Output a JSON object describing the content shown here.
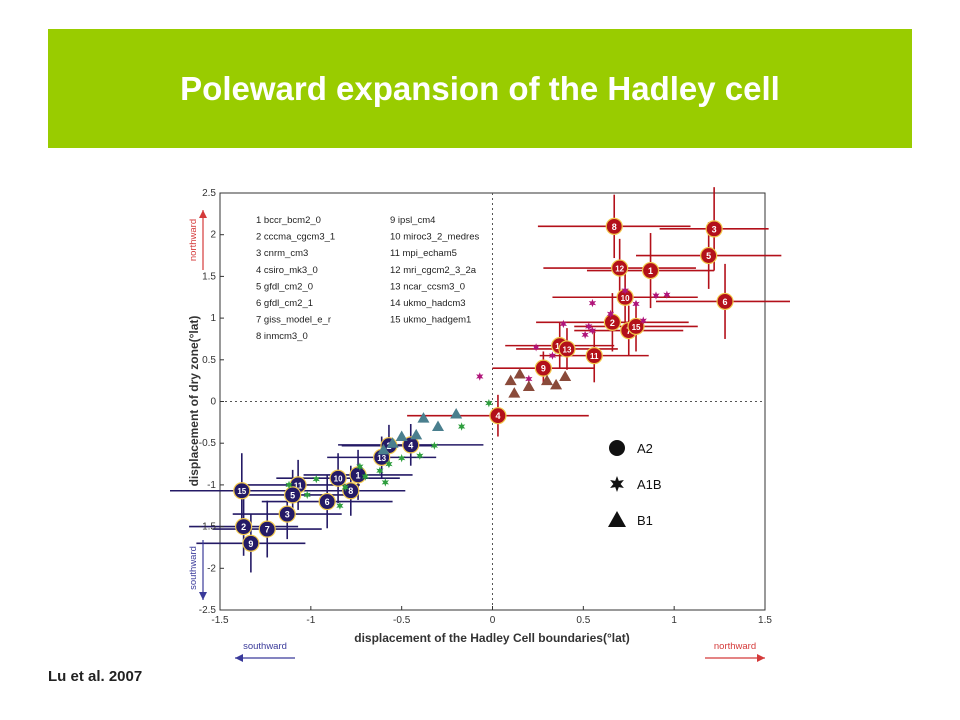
{
  "slide": {
    "title": "Poleward expansion of the Hadley cell",
    "citation": "Lu et al. 2007"
  },
  "colors": {
    "banner": "#99cc00",
    "a2_south": "#241a66",
    "a2_north": "#b3101a",
    "a1b_south": "#2e9e3e",
    "a1b_north": "#b0157a",
    "b1_south": "#4a7f8e",
    "b1_north": "#8a4a3a"
  },
  "chart_data": {
    "type": "scatter",
    "xlabel": "displacement of the Hadley Cell boundaries(°lat)",
    "ylabel": "displacement of dry zone(°lat)",
    "xlim": [
      -1.5,
      1.5
    ],
    "ylim": [
      -2.5,
      2.5
    ],
    "x_ticks": [
      "-1.5",
      "-1",
      "-0.5",
      "0",
      "0.5",
      "1",
      "1.5"
    ],
    "y_ticks": [
      "-2.5",
      "-2",
      "-1.5",
      "-1",
      "-0.5",
      "0",
      "0.5",
      "1",
      "1.5",
      "2",
      "2.5"
    ],
    "x_tick_values": [
      -1.5,
      -1,
      -0.5,
      0,
      0.5,
      1,
      1.5
    ],
    "y_tick_values": [
      -2.5,
      -2,
      -1.5,
      -1,
      -0.5,
      0,
      0.5,
      1,
      1.5,
      2,
      2.5
    ],
    "arrows": {
      "north_x": "northward",
      "south_x": "southward",
      "north_y": "northward",
      "south_y": "southward"
    },
    "models": [
      "1 bccr_bcm2_0",
      "2 cccma_cgcm3_1",
      "3 cnrm_cm3",
      "4 csiro_mk3_0",
      "5 gfdl_cm2_0",
      "6 gfdl_cm2_1",
      "7 giss_model_e_r",
      "8 inmcm3_0",
      "9 ipsl_cm4",
      "10 miroc3_2_medres",
      "11 mpi_echam5",
      "12 mri_cgcm2_3_2a",
      "13 ncar_ccsm3_0",
      "14 ukmo_hadcm3",
      "15 ukmo_hadgem1"
    ],
    "legend": [
      "A2",
      "A1B",
      "B1"
    ],
    "series": [
      {
        "name": "A2",
        "marker": "circle",
        "points": [
          {
            "x": 0.03,
            "y": -0.17,
            "id": "4",
            "hemi": "N",
            "xerr": 0.5,
            "yerr": 0.25
          },
          {
            "x": 0.28,
            "y": 0.4,
            "id": "9",
            "hemi": "N",
            "xerr": 0.28,
            "yerr": 0.2
          },
          {
            "x": 0.37,
            "y": 0.67,
            "id": "14",
            "hemi": "N",
            "xerr": 0.3,
            "yerr": 0.28
          },
          {
            "x": 0.41,
            "y": 0.63,
            "id": "13",
            "hemi": "N",
            "xerr": 0.28,
            "yerr": 0.25
          },
          {
            "x": 0.56,
            "y": 0.55,
            "id": "11",
            "hemi": "N",
            "xerr": 0.3,
            "yerr": 0.32
          },
          {
            "x": 0.66,
            "y": 0.95,
            "id": "2",
            "hemi": "N",
            "xerr": 0.42,
            "yerr": 0.35
          },
          {
            "x": 0.75,
            "y": 0.85,
            "id": "7",
            "hemi": "N",
            "xerr": 0.3,
            "yerr": 0.3
          },
          {
            "x": 0.79,
            "y": 0.9,
            "id": "15",
            "hemi": "N",
            "xerr": 0.34,
            "yerr": 0.3
          },
          {
            "x": 0.73,
            "y": 1.25,
            "id": "10",
            "hemi": "N",
            "xerr": 0.4,
            "yerr": 0.38
          },
          {
            "x": 0.67,
            "y": 2.1,
            "id": "8",
            "hemi": "N",
            "xerr": 0.42,
            "yerr": 0.38
          },
          {
            "x": 0.7,
            "y": 1.6,
            "id": "12",
            "hemi": "N",
            "xerr": 0.42,
            "yerr": 0.35
          },
          {
            "x": 0.87,
            "y": 1.57,
            "id": "1",
            "hemi": "N",
            "xerr": 0.35,
            "yerr": 0.45
          },
          {
            "x": 1.19,
            "y": 1.75,
            "id": "5",
            "hemi": "N",
            "xerr": 0.4,
            "yerr": 0.4
          },
          {
            "x": 1.22,
            "y": 2.07,
            "id": "3",
            "hemi": "N",
            "xerr": 0.3,
            "yerr": 0.5
          },
          {
            "x": 1.28,
            "y": 1.2,
            "id": "6",
            "hemi": "N",
            "xerr": 0.38,
            "yerr": 0.45
          },
          {
            "x": -0.45,
            "y": -0.52,
            "id": "4",
            "hemi": "S",
            "xerr": 0.4,
            "yerr": 0.25
          },
          {
            "x": -0.57,
            "y": -0.53,
            "id": "2",
            "hemi": "S",
            "xerr": 0.26,
            "yerr": 0.25
          },
          {
            "x": -0.61,
            "y": -0.67,
            "id": "13",
            "hemi": "S",
            "xerr": 0.3,
            "yerr": 0.25
          },
          {
            "x": -0.74,
            "y": -0.88,
            "id": "1",
            "hemi": "S",
            "xerr": 0.3,
            "yerr": 0.3
          },
          {
            "x": -0.85,
            "y": -0.92,
            "id": "10",
            "hemi": "S",
            "xerr": 0.34,
            "yerr": 0.3
          },
          {
            "x": -0.78,
            "y": -1.07,
            "id": "8",
            "hemi": "S",
            "xerr": 0.3,
            "yerr": 0.3
          },
          {
            "x": -0.91,
            "y": -1.2,
            "id": "6",
            "hemi": "S",
            "xerr": 0.36,
            "yerr": 0.32
          },
          {
            "x": -1.07,
            "y": -1.0,
            "id": "11",
            "hemi": "S",
            "xerr": 0.34,
            "yerr": 0.3
          },
          {
            "x": -1.1,
            "y": -1.12,
            "id": "5",
            "hemi": "S",
            "xerr": 0.32,
            "yerr": 0.3
          },
          {
            "x": -1.13,
            "y": -1.35,
            "id": "3",
            "hemi": "S",
            "xerr": 0.3,
            "yerr": 0.3
          },
          {
            "x": -1.24,
            "y": -1.53,
            "id": "7",
            "hemi": "S",
            "xerr": 0.3,
            "yerr": 0.34
          },
          {
            "x": -1.38,
            "y": -1.07,
            "id": "15",
            "hemi": "S",
            "xerr": 0.4,
            "yerr": 0.45
          },
          {
            "x": -1.37,
            "y": -1.5,
            "id": "2",
            "hemi": "S",
            "xerr": 0.3,
            "yerr": 0.35
          },
          {
            "x": -1.33,
            "y": -1.7,
            "id": "9",
            "hemi": "S",
            "xerr": 0.3,
            "yerr": 0.35
          }
        ]
      },
      {
        "name": "A1B",
        "marker": "star",
        "points": [
          {
            "x": -0.07,
            "y": 0.3,
            "hemi": "N"
          },
          {
            "x": 0.2,
            "y": 0.27,
            "hemi": "N"
          },
          {
            "x": 0.33,
            "y": 0.55,
            "hemi": "N"
          },
          {
            "x": 0.24,
            "y": 0.65,
            "hemi": "N"
          },
          {
            "x": 0.39,
            "y": 0.93,
            "hemi": "N"
          },
          {
            "x": 0.51,
            "y": 0.8,
            "hemi": "N"
          },
          {
            "x": 0.53,
            "y": 0.9,
            "hemi": "N"
          },
          {
            "x": 0.55,
            "y": 0.85,
            "hemi": "N"
          },
          {
            "x": 0.55,
            "y": 1.18,
            "hemi": "N"
          },
          {
            "x": 0.65,
            "y": 1.05,
            "hemi": "N"
          },
          {
            "x": 0.73,
            "y": 1.33,
            "hemi": "N"
          },
          {
            "x": 0.79,
            "y": 1.17,
            "hemi": "N"
          },
          {
            "x": 0.83,
            "y": 0.97,
            "hemi": "N"
          },
          {
            "x": 0.9,
            "y": 1.27,
            "hemi": "N"
          },
          {
            "x": 0.96,
            "y": 1.28,
            "hemi": "N"
          },
          {
            "x": -0.02,
            "y": -0.02,
            "hemi": "S"
          },
          {
            "x": -0.17,
            "y": -0.3,
            "hemi": "S"
          },
          {
            "x": -0.32,
            "y": -0.53,
            "hemi": "S"
          },
          {
            "x": -0.4,
            "y": -0.65,
            "hemi": "S"
          },
          {
            "x": -0.5,
            "y": -0.68,
            "hemi": "S"
          },
          {
            "x": -0.57,
            "y": -0.75,
            "hemi": "S"
          },
          {
            "x": -0.59,
            "y": -0.97,
            "hemi": "S"
          },
          {
            "x": -0.62,
            "y": -0.83,
            "hemi": "S"
          },
          {
            "x": -0.7,
            "y": -0.9,
            "hemi": "S"
          },
          {
            "x": -0.73,
            "y": -0.78,
            "hemi": "S"
          },
          {
            "x": -0.81,
            "y": -1.03,
            "hemi": "S"
          },
          {
            "x": -0.84,
            "y": -1.25,
            "hemi": "S"
          },
          {
            "x": -0.97,
            "y": -0.93,
            "hemi": "S"
          },
          {
            "x": -1.02,
            "y": -1.12,
            "hemi": "S"
          },
          {
            "x": -1.12,
            "y": -1.0,
            "hemi": "S"
          }
        ]
      },
      {
        "name": "B1",
        "marker": "triangle",
        "points": [
          {
            "x": 0.1,
            "y": 0.25,
            "hemi": "N"
          },
          {
            "x": 0.15,
            "y": 0.33,
            "hemi": "N"
          },
          {
            "x": 0.2,
            "y": 0.18,
            "hemi": "N"
          },
          {
            "x": 0.3,
            "y": 0.25,
            "hemi": "N"
          },
          {
            "x": 0.35,
            "y": 0.2,
            "hemi": "N"
          },
          {
            "x": 0.4,
            "y": 0.3,
            "hemi": "N"
          },
          {
            "x": 0.12,
            "y": 0.1,
            "hemi": "N"
          },
          {
            "x": -0.2,
            "y": -0.15,
            "hemi": "S"
          },
          {
            "x": -0.3,
            "y": -0.3,
            "hemi": "S"
          },
          {
            "x": -0.38,
            "y": -0.2,
            "hemi": "S"
          },
          {
            "x": -0.42,
            "y": -0.4,
            "hemi": "S"
          },
          {
            "x": -0.5,
            "y": -0.42,
            "hemi": "S"
          },
          {
            "x": -0.55,
            "y": -0.5,
            "hemi": "S"
          },
          {
            "x": -0.6,
            "y": -0.58,
            "hemi": "S"
          }
        ]
      }
    ]
  }
}
